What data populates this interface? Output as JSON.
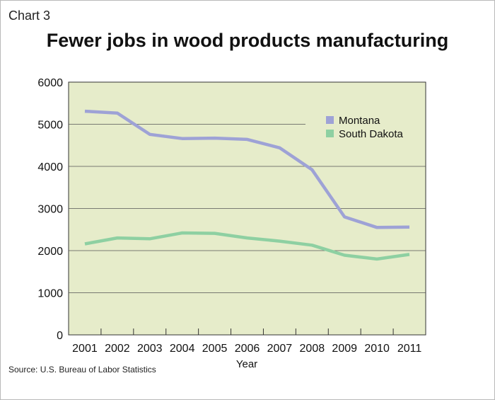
{
  "header": {
    "chart_label": "Chart 3",
    "title": "Fewer jobs in wood products manufacturing"
  },
  "footer": {
    "source": "Source: U.S. Bureau of Labor Statistics"
  },
  "chart_data": {
    "type": "line",
    "title": "Fewer jobs in wood products manufacturing",
    "xlabel": "Year",
    "ylabel": "",
    "x": [
      "2001",
      "2002",
      "2003",
      "2004",
      "2005",
      "2006",
      "2007",
      "2008",
      "2009",
      "2010",
      "2011"
    ],
    "ylim": [
      0,
      6000
    ],
    "yticks": [
      "0",
      "1000",
      "2000",
      "3000",
      "4000",
      "5000",
      "6000"
    ],
    "grid": true,
    "legend_position": "top-right",
    "plot_background": "#e6ecca",
    "series": [
      {
        "name": "Montana",
        "color": "#9ea2d6",
        "values": [
          5310,
          5265,
          4760,
          4660,
          4670,
          4640,
          4440,
          3920,
          2800,
          2550,
          2560
        ]
      },
      {
        "name": "South Dakota",
        "color": "#8ed0a2",
        "values": [
          2160,
          2300,
          2280,
          2420,
          2410,
          2300,
          2225,
          2130,
          1890,
          1800,
          1910
        ]
      }
    ]
  }
}
